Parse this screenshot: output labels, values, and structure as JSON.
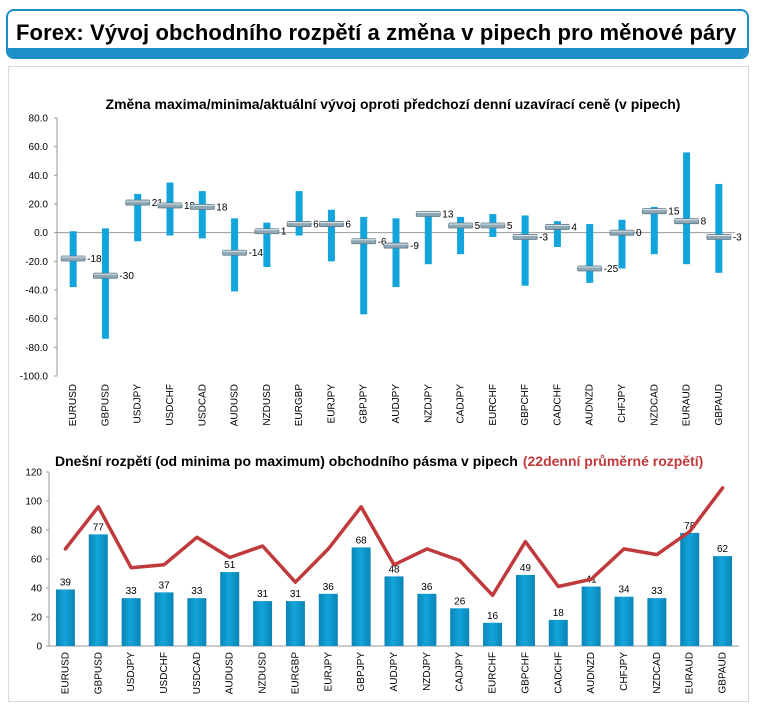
{
  "page_title": "Forex: Vývoj obchodního rozpětí a změna v pipech pro měnové páry",
  "colors": {
    "accent": "#1a8fc8",
    "bar": "#12a5dc",
    "bar_dark": "#0b84b5",
    "marker": "#8fa8b5",
    "line": "#c0393b"
  },
  "chart_data": [
    {
      "type": "bar",
      "title": "Změna maxima/minima/aktuální vývoj oproti předchozí denní uzavírací ceně (v pipech)",
      "categories": [
        "EURUSD",
        "GBPUSD",
        "USDJPY",
        "USDCHF",
        "USDCAD",
        "AUDUSD",
        "NZDUSD",
        "EURGBP",
        "EURJPY",
        "GBPJPY",
        "AUDJPY",
        "NZDJPY",
        "CADJPY",
        "EURCHF",
        "GBPCHF",
        "CADCHF",
        "AUDNZD",
        "CHFJPY",
        "NZDCAD",
        "EURAUD",
        "GBPAUD"
      ],
      "series": [
        {
          "values": [
            1,
            3,
            27,
            35,
            29,
            10,
            7,
            29,
            16,
            11,
            10,
            14,
            11,
            13,
            12,
            8,
            6,
            9,
            18,
            56,
            34
          ]
        },
        {
          "values": [
            -38,
            -74,
            -6,
            -2,
            -4,
            -41,
            -24,
            -2,
            -20,
            -57,
            -38,
            -22,
            -15,
            -3,
            -37,
            -10,
            -35,
            -25,
            -15,
            -22,
            -28
          ]
        },
        {
          "values": [
            -18,
            -30,
            21,
            19,
            18,
            -14,
            1,
            6,
            6,
            -6,
            -9,
            13,
            5,
            5,
            -3,
            4,
            -25,
            0,
            15,
            8,
            -3
          ]
        }
      ],
      "value_labels": [
        "-18",
        "-30",
        "21",
        "19",
        "18",
        "-14",
        "1",
        "6",
        "6",
        "-6",
        "-9",
        "13",
        "5",
        "5",
        "-3",
        "4",
        "-25",
        "0",
        "15",
        "8",
        "-3"
      ],
      "y_ticks": [
        "80.0",
        "60.0",
        "40.0",
        "20.0",
        "0.0",
        "-20.0",
        "-40.0",
        "-60.0",
        "-80.0",
        "-100.0"
      ],
      "ylim": [
        -100,
        80
      ],
      "grid": false,
      "xlabel": "",
      "ylabel": ""
    },
    {
      "type": "bar",
      "title": "Dnešní rozpětí (od minima po maximum) obchodního pásma v pipech",
      "title_red": "(22denní průměrné rozpětí)",
      "categories": [
        "EURUSD",
        "GBPUSD",
        "USDJPY",
        "USDCHF",
        "USDCAD",
        "AUDUSD",
        "NZDUSD",
        "EURGBP",
        "EURJPY",
        "GBPJPY",
        "AUDJPY",
        "NZDJPY",
        "CADJPY",
        "EURCHF",
        "GBPCHF",
        "CADCHF",
        "AUDNZD",
        "CHFJPY",
        "NZDCAD",
        "EURAUD",
        "GBPAUD"
      ],
      "series": [
        {
          "values": [
            39,
            77,
            33,
            37,
            33,
            51,
            31,
            31,
            36,
            68,
            48,
            36,
            26,
            16,
            49,
            18,
            41,
            34,
            33,
            78,
            62
          ]
        },
        {
          "type": "line",
          "values": [
            67,
            96,
            54,
            56,
            75,
            61,
            69,
            44,
            67,
            96,
            56,
            67,
            59,
            35,
            72,
            41,
            46,
            67,
            63,
            79,
            109
          ]
        }
      ],
      "value_labels": [
        "39",
        "77",
        "33",
        "37",
        "33",
        "51",
        "31",
        "31",
        "36",
        "68",
        "48",
        "36",
        "26",
        "16",
        "49",
        "18",
        "41",
        "34",
        "33",
        "78",
        "62"
      ],
      "y_ticks": [
        "120",
        "100",
        "80",
        "60",
        "40",
        "20",
        "0"
      ],
      "ylim": [
        0,
        120
      ],
      "grid": false,
      "xlabel": "",
      "ylabel": ""
    }
  ]
}
